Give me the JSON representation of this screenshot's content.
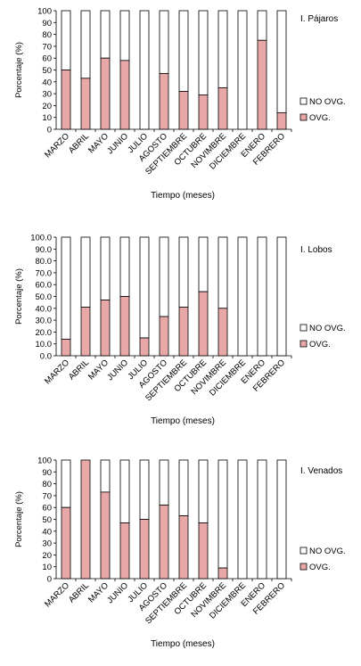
{
  "colors": {
    "ovg": "#e8a8a8",
    "no_ovg": "#ffffff",
    "stroke": "#000000"
  },
  "chart_data": [
    {
      "type": "bar",
      "stacked": true,
      "title": "I. Pájaros",
      "xlabel": "Tiempo (meses)",
      "ylabel": "Porcentaje (%)",
      "ylim": [
        0,
        100
      ],
      "yticks": [
        "0",
        "10",
        "20",
        "30",
        "40",
        "50",
        "60",
        "70",
        "80",
        "90",
        "100"
      ],
      "categories": [
        "MARZO",
        "ABRIL",
        "MAYO",
        "JUNIO",
        "JULIO",
        "AGOSTO",
        "SEPTIEMBRE",
        "OCTUBRE",
        "NOVIMBRE",
        "DICIEMBRE",
        "ENERO",
        "FEBRERO"
      ],
      "series": [
        {
          "name": "OVG.",
          "values": [
            50,
            43,
            60,
            58,
            0,
            47,
            32,
            29,
            35,
            0,
            75,
            14
          ]
        },
        {
          "name": "NO OVG.",
          "values": [
            50,
            57,
            40,
            42,
            100,
            53,
            68,
            71,
            65,
            100,
            25,
            86
          ]
        }
      ],
      "legend": "right"
    },
    {
      "type": "bar",
      "stacked": true,
      "title": "I. Lobos",
      "xlabel": "Tiempo (meses)",
      "ylabel": "Porcentaje (%)",
      "ylim": [
        0,
        100
      ],
      "yticks": [
        "0.0",
        "10.0",
        "20.0",
        "30.0",
        "40.0",
        "50.0",
        "60.0",
        "70.0",
        "80.0",
        "90.0",
        "100.0"
      ],
      "categories": [
        "MARZO",
        "ABRIL",
        "MAYO",
        "JUNIO",
        "JULIO",
        "AGOSTO",
        "SEPTIEMBRE",
        "OCTUBRE",
        "NOVIMBRE",
        "DICIEMBRE",
        "ENERO",
        "FEBRERO"
      ],
      "series": [
        {
          "name": "OVG.",
          "values": [
            14,
            41,
            47,
            50,
            15,
            33,
            41,
            54,
            40,
            0,
            0,
            0
          ]
        },
        {
          "name": "NO OVG.",
          "values": [
            86,
            59,
            53,
            50,
            85,
            67,
            59,
            46,
            60,
            100,
            100,
            100
          ]
        }
      ],
      "legend": "right"
    },
    {
      "type": "bar",
      "stacked": true,
      "title": "I. Venados",
      "xlabel": "Tiempo (meses)",
      "ylabel": "Porcentaje (%)",
      "ylim": [
        0,
        100
      ],
      "yticks": [
        "0",
        "10",
        "20",
        "30",
        "40",
        "50",
        "60",
        "70",
        "80",
        "90",
        "100"
      ],
      "categories": [
        "MARZO",
        "ABRIL",
        "MAYO",
        "JUNIO",
        "JULIO",
        "AGOSTO",
        "SEPTIEMBRE",
        "OCTUBRE",
        "NOVIMBRE",
        "DICIEMBRE",
        "ENERO",
        "FEBRERO"
      ],
      "series": [
        {
          "name": "OVG.",
          "values": [
            60,
            100,
            73,
            47,
            50,
            62,
            53,
            47,
            9,
            0,
            0,
            0
          ]
        },
        {
          "name": "NO OVG.",
          "values": [
            40,
            0,
            27,
            53,
            50,
            38,
            47,
            53,
            91,
            100,
            100,
            100
          ]
        }
      ],
      "legend": "right"
    }
  ]
}
